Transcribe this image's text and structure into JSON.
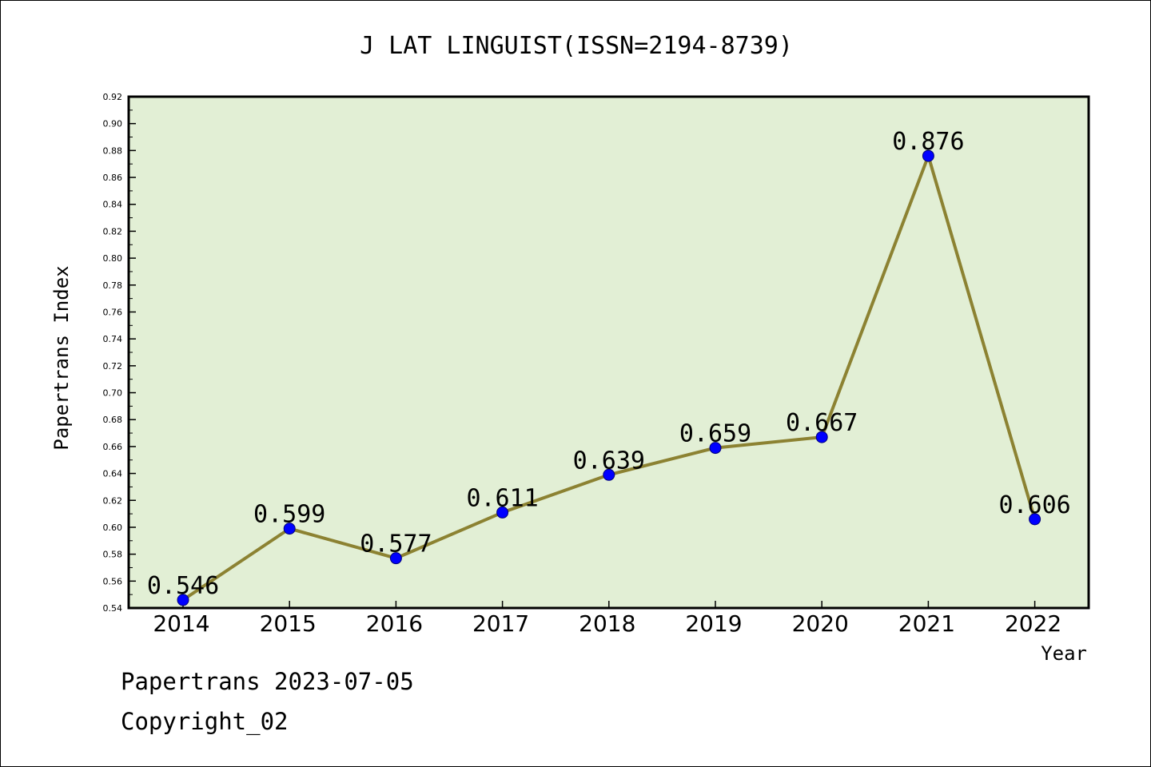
{
  "chart_data": {
    "type": "line",
    "title": "J LAT LINGUIST(ISSN=2194-8739)",
    "xlabel": "Year",
    "ylabel": "Papertrans Index",
    "categories": [
      "2014",
      "2015",
      "2016",
      "2017",
      "2018",
      "2019",
      "2020",
      "2021",
      "2022"
    ],
    "values": [
      0.546,
      0.599,
      0.577,
      0.611,
      0.639,
      0.659,
      0.667,
      0.876,
      0.606
    ],
    "data_labels": [
      "0.546",
      "0.599",
      "0.577",
      "0.611",
      "0.639",
      "0.659",
      "0.667",
      "0.876",
      "0.606"
    ],
    "ylim": [
      0.54,
      0.92
    ],
    "yticks": [
      "0.54",
      "0.56",
      "0.58",
      "0.60",
      "0.62",
      "0.64",
      "0.66",
      "0.68",
      "0.70",
      "0.72",
      "0.74",
      "0.76",
      "0.78",
      "0.80",
      "0.82",
      "0.84",
      "0.86",
      "0.88",
      "0.90",
      "0.92"
    ],
    "grid": false,
    "colors": {
      "plot_background": "#e2efd5",
      "line": "#8c8232",
      "marker": "#0000ff"
    }
  },
  "footer": {
    "line1": "Papertrans 2023-07-05",
    "line2": "Copyright_02"
  }
}
